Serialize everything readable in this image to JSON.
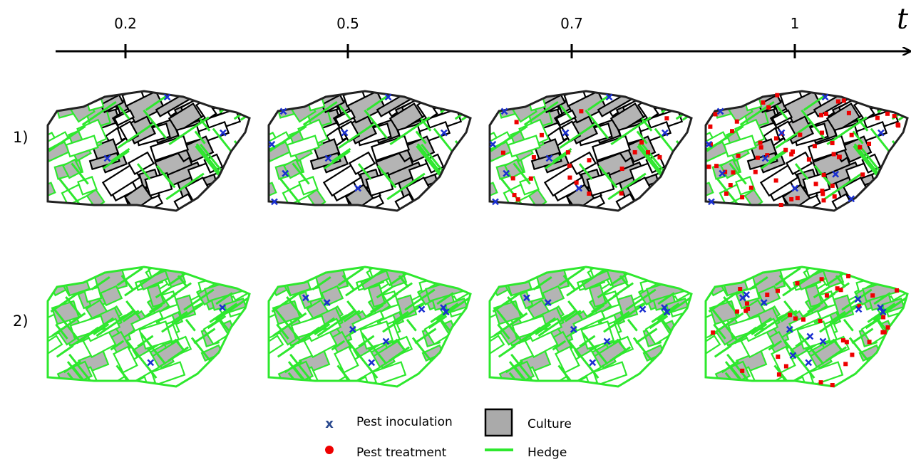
{
  "timeline": {
    "label": "t",
    "ticks": [
      "0.2",
      "0.5",
      "0.7",
      "1"
    ]
  },
  "rows": [
    "1)",
    "2)"
  ],
  "legend": {
    "inoculation_symbol": "x",
    "inoculation": "Pest inoculation",
    "treatment": "Pest treatment",
    "culture": "Culture",
    "hedge": "Hedge"
  }
}
